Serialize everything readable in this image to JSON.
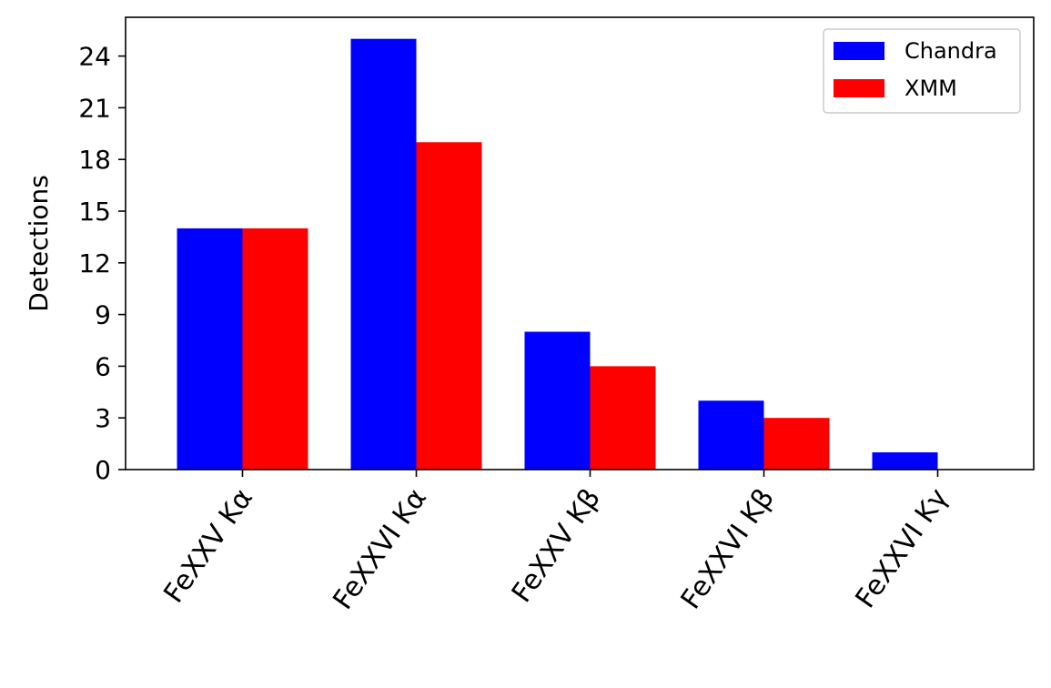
{
  "chart_data": {
    "type": "bar",
    "title": "",
    "xlabel": "",
    "ylabel": "Detections",
    "categories": [
      "FeXXV Kα",
      "FeXXVI Kα",
      "FeXXV Kβ",
      "FeXXVI Kβ",
      "FeXXVI Kγ"
    ],
    "series": [
      {
        "name": "Chandra",
        "values": [
          14,
          25,
          8,
          4,
          1
        ],
        "color": "#0000ff"
      },
      {
        "name": "XMM",
        "values": [
          14,
          19,
          6,
          3,
          0
        ],
        "color": "#ff0000"
      }
    ],
    "ylim": [
      0,
      26.25
    ],
    "yticks": [
      0,
      3,
      6,
      9,
      12,
      15,
      18,
      21,
      24
    ],
    "grid": false,
    "legend_position": "top-right"
  }
}
